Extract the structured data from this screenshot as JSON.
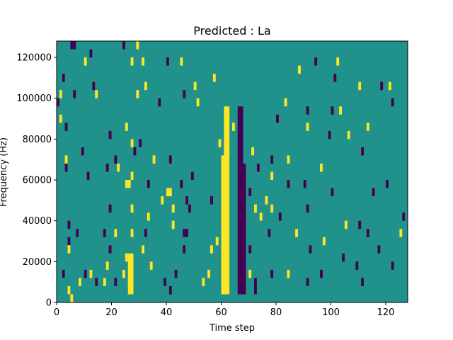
{
  "chart_data": {
    "type": "heatmap",
    "title": "Predicted : La",
    "xlabel": "Time step",
    "ylabel": "Frequency (Hz)",
    "xlim": [
      0,
      128
    ],
    "ylim": [
      0,
      128000
    ],
    "x_ticks": [
      0,
      20,
      40,
      60,
      80,
      100,
      120
    ],
    "y_ticks": [
      0,
      20000,
      40000,
      60000,
      80000,
      100000,
      120000
    ],
    "colormap": "viridis",
    "colors": {
      "background": "#21918c",
      "high": "#fde725",
      "low": "#440154"
    },
    "grid": false,
    "cell_time_width": 1,
    "cell_freq_height": 4000,
    "cells": [
      {
        "t": 5,
        "f": 124000,
        "v": "low"
      },
      {
        "t": 6,
        "f": 124000,
        "v": "low"
      },
      {
        "t": 10,
        "f": 116000,
        "v": "high"
      },
      {
        "t": 12,
        "f": 120000,
        "v": "low"
      },
      {
        "t": 24,
        "f": 124000,
        "v": "low"
      },
      {
        "t": 27,
        "f": 116000,
        "v": "high"
      },
      {
        "t": 29,
        "f": 124000,
        "v": "high"
      },
      {
        "t": 31,
        "f": 116000,
        "v": "high"
      },
      {
        "t": 40,
        "f": 116000,
        "v": "low"
      },
      {
        "t": 45,
        "f": 116000,
        "v": "high"
      },
      {
        "t": 2,
        "f": 108000,
        "v": "low"
      },
      {
        "t": 13,
        "f": 104000,
        "v": "low"
      },
      {
        "t": 32,
        "f": 104000,
        "v": "high"
      },
      {
        "t": 50,
        "f": 104000,
        "v": "high"
      },
      {
        "t": 57,
        "f": 108000,
        "v": "high"
      },
      {
        "t": 88,
        "f": 112000,
        "v": "high"
      },
      {
        "t": 94,
        "f": 116000,
        "v": "low"
      },
      {
        "t": 101,
        "f": 108000,
        "v": "low"
      },
      {
        "t": 102,
        "f": 116000,
        "v": "high"
      },
      {
        "t": 110,
        "f": 104000,
        "v": "high"
      },
      {
        "t": 118,
        "f": 104000,
        "v": "low"
      },
      {
        "t": 121,
        "f": 104000,
        "v": "high"
      },
      {
        "t": 0,
        "f": 96000,
        "v": "low"
      },
      {
        "t": 1,
        "f": 100000,
        "v": "high"
      },
      {
        "t": 6,
        "f": 100000,
        "v": "low"
      },
      {
        "t": 14,
        "f": 100000,
        "v": "high"
      },
      {
        "t": 29,
        "f": 100000,
        "v": "high"
      },
      {
        "t": 37,
        "f": 96000,
        "v": "low"
      },
      {
        "t": 46,
        "f": 100000,
        "v": "low"
      },
      {
        "t": 51,
        "f": 96000,
        "v": "high"
      },
      {
        "t": 83,
        "f": 96000,
        "v": "high"
      },
      {
        "t": 91,
        "f": 92000,
        "v": "low"
      },
      {
        "t": 100,
        "f": 92000,
        "v": "low"
      },
      {
        "t": 103,
        "f": 92000,
        "v": "high"
      },
      {
        "t": 122,
        "f": 96000,
        "v": "low"
      },
      {
        "t": 1,
        "f": 88000,
        "v": "high"
      },
      {
        "t": 3,
        "f": 84000,
        "v": "low"
      },
      {
        "t": 19,
        "f": 80000,
        "v": "low"
      },
      {
        "t": 25,
        "f": 84000,
        "v": "high"
      },
      {
        "t": 27,
        "f": 76000,
        "v": "high"
      },
      {
        "t": 30,
        "f": 76000,
        "v": "low"
      },
      {
        "t": 62,
        "f": 88000,
        "v": "high"
      },
      {
        "t": 64,
        "f": 84000,
        "v": "high"
      },
      {
        "t": 80,
        "f": 88000,
        "v": "low"
      },
      {
        "t": 91,
        "f": 84000,
        "v": "high"
      },
      {
        "t": 99,
        "f": 80000,
        "v": "low"
      },
      {
        "t": 106,
        "f": 80000,
        "v": "high"
      },
      {
        "t": 113,
        "f": 84000,
        "v": "high"
      },
      {
        "t": 3,
        "f": 68000,
        "v": "high"
      },
      {
        "t": 9,
        "f": 72000,
        "v": "low"
      },
      {
        "t": 21,
        "f": 68000,
        "v": "low"
      },
      {
        "t": 28,
        "f": 72000,
        "v": "low"
      },
      {
        "t": 35,
        "f": 68000,
        "v": "high"
      },
      {
        "t": 41,
        "f": 68000,
        "v": "low"
      },
      {
        "t": 59,
        "f": 76000,
        "v": "high"
      },
      {
        "t": 71,
        "f": 72000,
        "v": "high"
      },
      {
        "t": 78,
        "f": 68000,
        "v": "low"
      },
      {
        "t": 84,
        "f": 68000,
        "v": "high"
      },
      {
        "t": 96,
        "f": 64000,
        "v": "high"
      },
      {
        "t": 111,
        "f": 72000,
        "v": "low"
      },
      {
        "t": 3,
        "f": 64000,
        "v": "low"
      },
      {
        "t": 11,
        "f": 60000,
        "v": "low"
      },
      {
        "t": 18,
        "f": 64000,
        "v": "low"
      },
      {
        "t": 22,
        "f": 64000,
        "v": "high"
      },
      {
        "t": 27,
        "f": 60000,
        "v": "high"
      },
      {
        "t": 33,
        "f": 56000,
        "v": "low"
      },
      {
        "t": 45,
        "f": 56000,
        "v": "low"
      },
      {
        "t": 49,
        "f": 60000,
        "v": "low"
      },
      {
        "t": 73,
        "f": 64000,
        "v": "low"
      },
      {
        "t": 78,
        "f": 60000,
        "v": "high"
      },
      {
        "t": 84,
        "f": 56000,
        "v": "low"
      },
      {
        "t": 90,
        "f": 56000,
        "v": "low"
      },
      {
        "t": 115,
        "f": 52000,
        "v": "low"
      },
      {
        "t": 120,
        "f": 56000,
        "v": "low"
      },
      {
        "t": 25,
        "f": 56000,
        "v": "high"
      },
      {
        "t": 26,
        "f": 56000,
        "v": "high"
      },
      {
        "t": 38,
        "f": 48000,
        "v": "high"
      },
      {
        "t": 40,
        "f": 52000,
        "v": "high"
      },
      {
        "t": 41,
        "f": 52000,
        "v": "high"
      },
      {
        "t": 47,
        "f": 48000,
        "v": "low"
      },
      {
        "t": 56,
        "f": 48000,
        "v": "low"
      },
      {
        "t": 70,
        "f": 52000,
        "v": "low"
      },
      {
        "t": 76,
        "f": 48000,
        "v": "high"
      },
      {
        "t": 100,
        "f": 52000,
        "v": "low"
      },
      {
        "t": 4,
        "f": 36000,
        "v": "low"
      },
      {
        "t": 19,
        "f": 44000,
        "v": "low"
      },
      {
        "t": 27,
        "f": 44000,
        "v": "high"
      },
      {
        "t": 33,
        "f": 40000,
        "v": "high"
      },
      {
        "t": 42,
        "f": 44000,
        "v": "high"
      },
      {
        "t": 48,
        "f": 44000,
        "v": "low"
      },
      {
        "t": 72,
        "f": 44000,
        "v": "high"
      },
      {
        "t": 74,
        "f": 40000,
        "v": "high"
      },
      {
        "t": 78,
        "f": 44000,
        "v": "high"
      },
      {
        "t": 81,
        "f": 40000,
        "v": "low"
      },
      {
        "t": 91,
        "f": 44000,
        "v": "low"
      },
      {
        "t": 105,
        "f": 36000,
        "v": "high"
      },
      {
        "t": 110,
        "f": 36000,
        "v": "low"
      },
      {
        "t": 126,
        "f": 40000,
        "v": "low"
      },
      {
        "t": 4,
        "f": 28000,
        "v": "low"
      },
      {
        "t": 7,
        "f": 32000,
        "v": "low"
      },
      {
        "t": 17,
        "f": 32000,
        "v": "low"
      },
      {
        "t": 21,
        "f": 32000,
        "v": "high"
      },
      {
        "t": 27,
        "f": 32000,
        "v": "high"
      },
      {
        "t": 32,
        "f": 32000,
        "v": "low"
      },
      {
        "t": 42,
        "f": 36000,
        "v": "high"
      },
      {
        "t": 46,
        "f": 32000,
        "v": "low"
      },
      {
        "t": 47,
        "f": 32000,
        "v": "low"
      },
      {
        "t": 58,
        "f": 28000,
        "v": "high"
      },
      {
        "t": 77,
        "f": 32000,
        "v": "low"
      },
      {
        "t": 87,
        "f": 32000,
        "v": "high"
      },
      {
        "t": 97,
        "f": 28000,
        "v": "high"
      },
      {
        "t": 113,
        "f": 32000,
        "v": "low"
      },
      {
        "t": 125,
        "f": 32000,
        "v": "high"
      },
      {
        "t": 4,
        "f": 24000,
        "v": "high"
      },
      {
        "t": 19,
        "f": 24000,
        "v": "low"
      },
      {
        "t": 25,
        "f": 20000,
        "v": "high"
      },
      {
        "t": 31,
        "f": 24000,
        "v": "high"
      },
      {
        "t": 46,
        "f": 24000,
        "v": "low"
      },
      {
        "t": 56,
        "f": 24000,
        "v": "high"
      },
      {
        "t": 70,
        "f": 24000,
        "v": "low"
      },
      {
        "t": 92,
        "f": 24000,
        "v": "low"
      },
      {
        "t": 104,
        "f": 20000,
        "v": "low"
      },
      {
        "t": 117,
        "f": 24000,
        "v": "low"
      },
      {
        "t": 2,
        "f": 12000,
        "v": "low"
      },
      {
        "t": 10,
        "f": 12000,
        "v": "low"
      },
      {
        "t": 12,
        "f": 12000,
        "v": "high"
      },
      {
        "t": 18,
        "f": 16000,
        "v": "high"
      },
      {
        "t": 24,
        "f": 12000,
        "v": "high"
      },
      {
        "t": 34,
        "f": 16000,
        "v": "high"
      },
      {
        "t": 43,
        "f": 12000,
        "v": "low"
      },
      {
        "t": 55,
        "f": 12000,
        "v": "high"
      },
      {
        "t": 70,
        "f": 12000,
        "v": "high"
      },
      {
        "t": 78,
        "f": 12000,
        "v": "low"
      },
      {
        "t": 84,
        "f": 12000,
        "v": "high"
      },
      {
        "t": 96,
        "f": 12000,
        "v": "low"
      },
      {
        "t": 109,
        "f": 16000,
        "v": "low"
      },
      {
        "t": 122,
        "f": 16000,
        "v": "low"
      },
      {
        "t": 8,
        "f": 8000,
        "v": "high"
      },
      {
        "t": 14,
        "f": 8000,
        "v": "low"
      },
      {
        "t": 17,
        "f": 8000,
        "v": "high"
      },
      {
        "t": 21,
        "f": 8000,
        "v": "low"
      },
      {
        "t": 26,
        "f": 8000,
        "v": "high"
      },
      {
        "t": 39,
        "f": 8000,
        "v": "low"
      },
      {
        "t": 53,
        "f": 8000,
        "v": "high"
      },
      {
        "t": 72,
        "f": 8000,
        "v": "low"
      },
      {
        "t": 91,
        "f": 8000,
        "v": "low"
      },
      {
        "t": 111,
        "f": 8000,
        "v": "low"
      },
      {
        "t": 4,
        "f": 4000,
        "v": "high"
      },
      {
        "t": 5,
        "f": 0,
        "v": "high"
      },
      {
        "t": 41,
        "f": 4000,
        "v": "low"
      },
      {
        "t": 72,
        "f": 4000,
        "v": "low"
      }
    ],
    "bands": [
      {
        "t_start": 60,
        "t_end": 63,
        "f_start": 4000,
        "f_end": 72000,
        "v": "high"
      },
      {
        "t_start": 61,
        "t_end": 63,
        "f_start": 72000,
        "f_end": 96000,
        "v": "high"
      },
      {
        "t_start": 66,
        "t_end": 69,
        "f_start": 4000,
        "f_end": 68000,
        "v": "low"
      },
      {
        "t_start": 66,
        "t_end": 68,
        "f_start": 68000,
        "f_end": 96000,
        "v": "low"
      },
      {
        "t_start": 26,
        "t_end": 28,
        "f_start": 4000,
        "f_end": 24000,
        "v": "high"
      }
    ]
  }
}
